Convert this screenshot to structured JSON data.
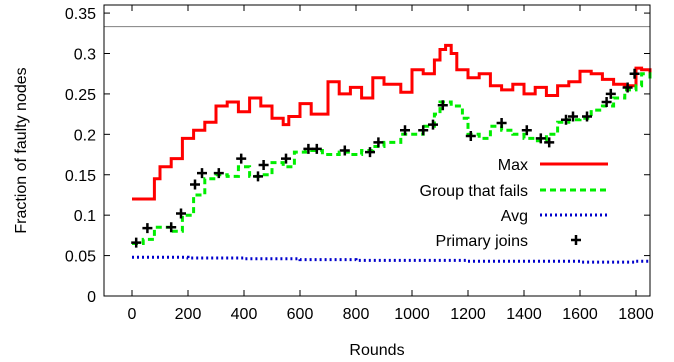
{
  "chart_data": {
    "type": "line",
    "title": "",
    "xlabel": "Rounds",
    "ylabel": "Fraction of faulty nodes",
    "xlim": [
      -100,
      1850
    ],
    "ylim": [
      0,
      0.36
    ],
    "x_ticks": [
      "0",
      "200",
      "400",
      "600",
      "800",
      "1000",
      "1200",
      "1400",
      "1600",
      "1800"
    ],
    "y_ticks": [
      "0",
      "0.05",
      "0.1",
      "0.15",
      "0.2",
      "0.25",
      "0.3",
      "0.35"
    ],
    "grid": false,
    "legend_position": "bottom-right",
    "reference_line": {
      "y": 0.3333,
      "color": "#808080"
    },
    "series": [
      {
        "name": "Max",
        "color": "#ff0000",
        "style": "solid",
        "x": [
          0,
          40,
          80,
          100,
          140,
          180,
          220,
          260,
          300,
          340,
          380,
          420,
          460,
          500,
          540,
          560,
          600,
          640,
          700,
          740,
          780,
          820,
          860,
          900,
          960,
          1000,
          1040,
          1080,
          1100,
          1120,
          1140,
          1160,
          1200,
          1240,
          1280,
          1320,
          1360,
          1400,
          1440,
          1480,
          1520,
          1560,
          1600,
          1640,
          1680,
          1720,
          1760,
          1800,
          1820,
          1850
        ],
        "values": [
          0.12,
          0.12,
          0.145,
          0.16,
          0.17,
          0.195,
          0.205,
          0.215,
          0.235,
          0.24,
          0.228,
          0.245,
          0.235,
          0.22,
          0.212,
          0.222,
          0.238,
          0.225,
          0.265,
          0.25,
          0.258,
          0.245,
          0.27,
          0.262,
          0.252,
          0.28,
          0.275,
          0.292,
          0.305,
          0.31,
          0.3,
          0.28,
          0.27,
          0.275,
          0.26,
          0.255,
          0.262,
          0.25,
          0.258,
          0.248,
          0.26,
          0.265,
          0.278,
          0.275,
          0.268,
          0.262,
          0.26,
          0.282,
          0.28,
          0.275
        ]
      },
      {
        "name": "Group that fails",
        "color": "#00ee00",
        "style": "dashed",
        "x": [
          0,
          40,
          80,
          140,
          180,
          220,
          260,
          300,
          340,
          380,
          420,
          460,
          500,
          540,
          580,
          620,
          680,
          740,
          780,
          820,
          860,
          900,
          960,
          1000,
          1040,
          1080,
          1100,
          1140,
          1180,
          1200,
          1240,
          1280,
          1320,
          1360,
          1400,
          1440,
          1480,
          1520,
          1560,
          1600,
          1640,
          1680,
          1720,
          1760,
          1800,
          1820,
          1850
        ],
        "values": [
          0.065,
          0.07,
          0.085,
          0.08,
          0.1,
          0.125,
          0.145,
          0.15,
          0.148,
          0.16,
          0.148,
          0.15,
          0.165,
          0.16,
          0.178,
          0.18,
          0.175,
          0.178,
          0.175,
          0.18,
          0.185,
          0.19,
          0.2,
          0.2,
          0.21,
          0.225,
          0.24,
          0.235,
          0.22,
          0.2,
          0.195,
          0.21,
          0.205,
          0.2,
          0.195,
          0.192,
          0.2,
          0.215,
          0.218,
          0.22,
          0.23,
          0.235,
          0.245,
          0.255,
          0.26,
          0.275,
          0.265
        ]
      },
      {
        "name": "Avg",
        "color": "#0000cc",
        "style": "dotted",
        "x": [
          0,
          200,
          400,
          600,
          800,
          1000,
          1200,
          1400,
          1600,
          1800,
          1850
        ],
        "values": [
          0.048,
          0.047,
          0.046,
          0.045,
          0.044,
          0.044,
          0.043,
          0.043,
          0.042,
          0.043,
          0.043
        ]
      },
      {
        "name": "Primary joins",
        "color": "#000000",
        "style": "markers",
        "marker": "+",
        "x": [
          15,
          55,
          140,
          175,
          225,
          250,
          310,
          390,
          450,
          470,
          550,
          630,
          660,
          760,
          850,
          880,
          975,
          1040,
          1075,
          1110,
          1210,
          1320,
          1410,
          1460,
          1490,
          1550,
          1575,
          1625,
          1695,
          1710,
          1770,
          1795
        ],
        "values": [
          0.066,
          0.084,
          0.085,
          0.102,
          0.138,
          0.152,
          0.152,
          0.17,
          0.148,
          0.162,
          0.17,
          0.182,
          0.182,
          0.18,
          0.178,
          0.19,
          0.205,
          0.205,
          0.212,
          0.236,
          0.198,
          0.214,
          0.205,
          0.195,
          0.19,
          0.218,
          0.222,
          0.222,
          0.24,
          0.25,
          0.258,
          0.275
        ]
      }
    ]
  }
}
